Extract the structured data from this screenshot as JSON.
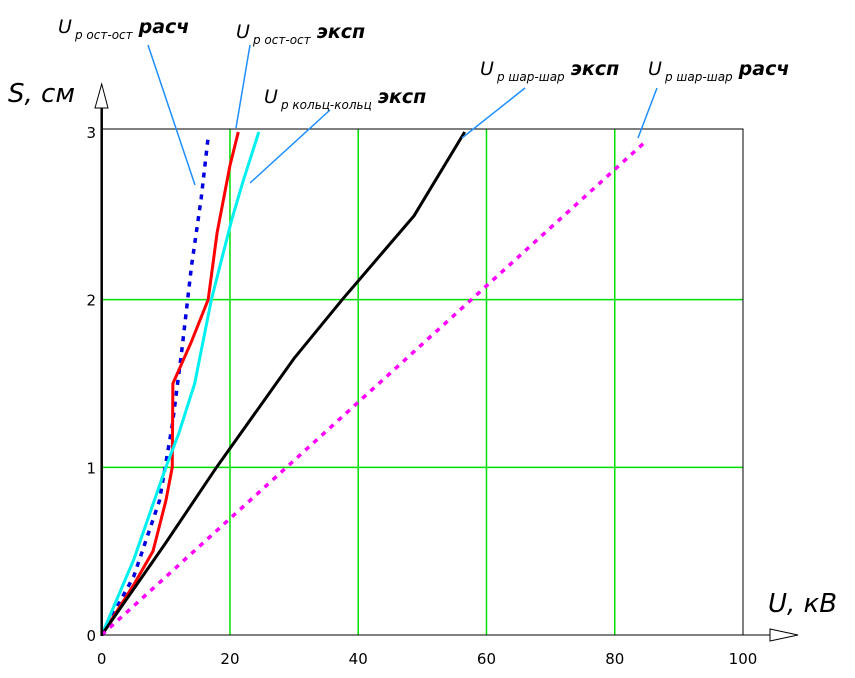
{
  "chart_data": {
    "type": "line",
    "title": "",
    "xlabel": "U, кВ",
    "ylabel": "S, см",
    "xlim": [
      0,
      100
    ],
    "ylim": [
      0,
      3
    ],
    "xticks": [
      "0",
      "20",
      "40",
      "60",
      "80",
      "100"
    ],
    "yticks": [
      "0",
      "1",
      "2",
      "3"
    ],
    "grid": true,
    "grid_color": "#00e000",
    "series": [
      {
        "name_main": "U",
        "name_sub": "р ост-ост",
        "name_suffix": "расч",
        "color": "#0000e0",
        "dash": "dotted",
        "x": [
          0,
          5,
          9,
          11,
          12.5,
          14,
          15.5,
          16.6
        ],
        "y": [
          0,
          0.35,
          0.8,
          1.25,
          1.7,
          2.2,
          2.6,
          2.97
        ]
      },
      {
        "name_main": "U",
        "name_sub": "р ост-ост",
        "name_suffix": "эксп",
        "color": "#ff0000",
        "dash": "solid",
        "x": [
          0,
          5,
          8,
          10,
          11,
          11.1,
          14,
          16.6,
          18,
          20,
          21.3
        ],
        "y": [
          0,
          0.3,
          0.5,
          0.8,
          1.0,
          1.5,
          1.75,
          2.0,
          2.4,
          2.8,
          3.0
        ]
      },
      {
        "name_main": "U",
        "name_sub": "р кольц-кольц",
        "name_suffix": "эксп",
        "color": "#00f0f0",
        "dash": "solid",
        "x": [
          0,
          5,
          10,
          12,
          14.5,
          17.1,
          20.3,
          22,
          24.5
        ],
        "y": [
          0,
          0.45,
          1.0,
          1.2,
          1.5,
          2.0,
          2.48,
          2.7,
          3.0
        ]
      },
      {
        "name_main": "U",
        "name_sub": "р шар-шар",
        "name_suffix": "эксп",
        "color": "#000000",
        "dash": "solid",
        "x": [
          0,
          10,
          17.9,
          30,
          37.5,
          48.7,
          56.6
        ],
        "y": [
          0,
          0.55,
          1.0,
          1.65,
          2.0,
          2.5,
          3.0
        ]
      },
      {
        "name_main": "U",
        "name_sub": "р шар-шар",
        "name_suffix": "расч",
        "color": "#ff00ff",
        "dash": "dotted",
        "x": [
          0,
          85
        ],
        "y": [
          0,
          2.95
        ]
      }
    ]
  }
}
